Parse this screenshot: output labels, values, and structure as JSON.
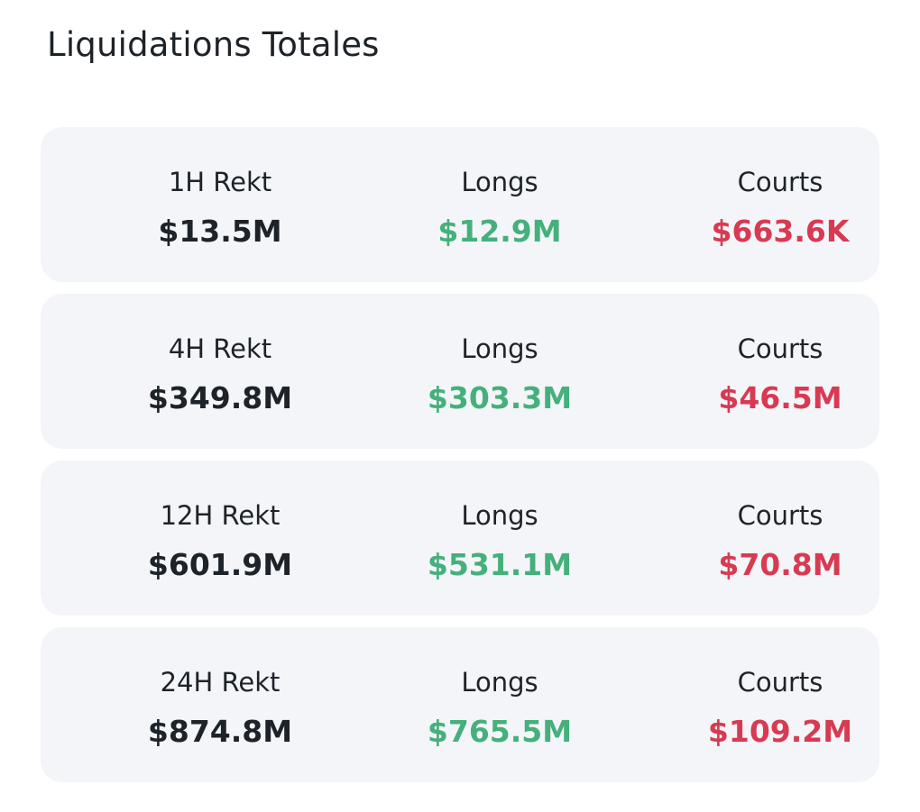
{
  "header": {
    "title": "Liquidations Totales"
  },
  "cards": [
    {
      "label": "1H Rekt",
      "value": "$13.5M",
      "longs_label": "Longs",
      "longs": "$12.9M",
      "courts_label": "Courts",
      "courts": "$663.6K"
    },
    {
      "label": "4H Rekt",
      "value": "$349.8M",
      "longs_label": "Longs",
      "longs": "$303.3M",
      "courts_label": "Courts",
      "courts": "$46.5M"
    },
    {
      "label": "12H Rekt",
      "value": "$601.9M",
      "longs_label": "Longs",
      "longs": "$531.1M",
      "courts_label": "Courts",
      "courts": "$70.8M"
    },
    {
      "label": "24H Rekt",
      "value": "$874.8M",
      "longs_label": "Longs",
      "longs": "$765.5M",
      "courts_label": "Courts",
      "courts": "$109.2M"
    }
  ]
}
